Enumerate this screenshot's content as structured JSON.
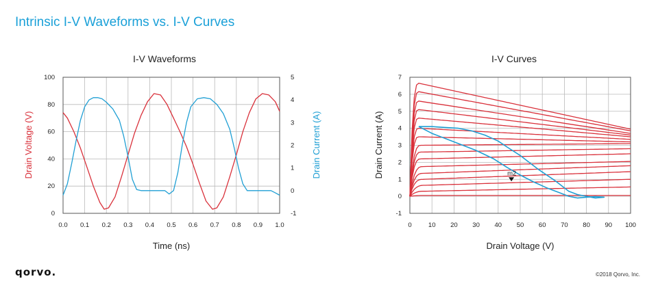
{
  "page": {
    "title": "Intrinsic I-V Waveforms vs. I-V Curves",
    "logo": "qorvo.",
    "copyright": "©2018 Qorvo, Inc."
  },
  "colors": {
    "red": "#d9303a",
    "blue": "#1f9fd4",
    "title_blue": "#1aa0d8",
    "grid": "#b9b9b9"
  },
  "chart_data": [
    {
      "type": "line",
      "title": "I-V Waveforms",
      "xlabel": "Time (ns)",
      "ylabel": "Drain Voltage (V)",
      "y2label": "Drain Current (A)",
      "xlim": [
        0,
        1.0
      ],
      "ylim": [
        0,
        100
      ],
      "y2lim": [
        -1,
        5
      ],
      "xticks": [
        "0.0",
        "0.1",
        "0.2",
        "0.3",
        "0.4",
        "0.5",
        "0.6",
        "0.7",
        "0.8",
        "0.9",
        "1.0"
      ],
      "yticks": [
        "0",
        "20",
        "40",
        "60",
        "80",
        "100"
      ],
      "y2ticks": [
        "-1",
        "0",
        "1",
        "2",
        "3",
        "4",
        "5"
      ],
      "grid": true,
      "series": [
        {
          "axis": "left",
          "color": "#d9303a",
          "x": [
            0,
            0.02,
            0.05,
            0.08,
            0.11,
            0.14,
            0.17,
            0.19,
            0.21,
            0.24,
            0.27,
            0.3,
            0.33,
            0.36,
            0.39,
            0.42,
            0.45,
            0.48,
            0.51,
            0.54,
            0.57,
            0.6,
            0.63,
            0.66,
            0.69,
            0.71,
            0.74,
            0.77,
            0.8,
            0.83,
            0.86,
            0.89,
            0.92,
            0.95,
            0.98,
            1.0
          ],
          "y": [
            74,
            70,
            60,
            48,
            34,
            20,
            8,
            3,
            4,
            12,
            27,
            43,
            59,
            72,
            82,
            88,
            87,
            80,
            70,
            60,
            49,
            36,
            22,
            9,
            3,
            4,
            12,
            27,
            43,
            60,
            74,
            84,
            88,
            87,
            82,
            75
          ]
        },
        {
          "axis": "right",
          "color": "#1f9fd4",
          "x": [
            0,
            0.02,
            0.04,
            0.06,
            0.08,
            0.1,
            0.12,
            0.14,
            0.16,
            0.18,
            0.2,
            0.23,
            0.26,
            0.28,
            0.3,
            0.32,
            0.34,
            0.36,
            0.4,
            0.44,
            0.47,
            0.49,
            0.51,
            0.53,
            0.55,
            0.57,
            0.59,
            0.62,
            0.65,
            0.68,
            0.71,
            0.74,
            0.77,
            0.79,
            0.81,
            0.83,
            0.85,
            0.87,
            0.92,
            0.96,
            0.98,
            1.0
          ],
          "y": [
            -0.2,
            0.3,
            1.2,
            2.2,
            3.1,
            3.7,
            4.0,
            4.1,
            4.1,
            4.05,
            3.9,
            3.6,
            3.1,
            2.4,
            1.5,
            0.5,
            0.05,
            0.0,
            0.0,
            0.0,
            0.0,
            -0.15,
            0.0,
            0.8,
            2.0,
            3.0,
            3.7,
            4.05,
            4.1,
            4.05,
            3.8,
            3.4,
            2.7,
            1.9,
            1.0,
            0.3,
            0.0,
            0.0,
            0.0,
            0.0,
            -0.1,
            -0.2
          ]
        }
      ]
    },
    {
      "type": "line",
      "title": "I-V Curves",
      "xlabel": "Drain Voltage (V)",
      "ylabel": "Drain Current (A)",
      "xlim": [
        0,
        100
      ],
      "ylim": [
        -1,
        7
      ],
      "xticks": [
        "0",
        "10",
        "20",
        "30",
        "40",
        "50",
        "60",
        "70",
        "80",
        "90",
        "100"
      ],
      "yticks": [
        "-1",
        "0",
        "1",
        "2",
        "3",
        "4",
        "5",
        "6",
        "7"
      ],
      "grid": true,
      "family": {
        "color": "#d9303a",
        "knee_x": [
          8,
          7,
          7,
          6,
          6,
          6,
          5,
          5,
          5,
          4,
          4,
          4,
          4,
          4,
          4,
          4
        ],
        "peak_y": [
          0.05,
          0.3,
          0.65,
          1.0,
          1.35,
          1.75,
          2.2,
          2.6,
          3.0,
          3.5,
          4.0,
          4.6,
          5.1,
          5.6,
          6.15,
          6.65
        ],
        "end_y": [
          0.05,
          0.55,
          1.0,
          1.45,
          1.8,
          2.05,
          2.5,
          2.8,
          3.1,
          3.2,
          3.35,
          3.5,
          3.6,
          3.7,
          3.85,
          3.95
        ]
      },
      "load_line": {
        "color": "#1f9fd4",
        "x": [
          4,
          10,
          20,
          30,
          38,
          44,
          50,
          56,
          62,
          68,
          72,
          76,
          80,
          84,
          88,
          84,
          80,
          76,
          72,
          66,
          58,
          50,
          44,
          40,
          34,
          28,
          22,
          16,
          10,
          6,
          4
        ],
        "y": [
          4.1,
          3.7,
          3.2,
          2.7,
          2.2,
          1.7,
          1.25,
          0.85,
          0.5,
          0.2,
          0.0,
          -0.1,
          -0.05,
          -0.02,
          -0.05,
          -0.1,
          0.0,
          0.1,
          0.3,
          0.9,
          1.6,
          2.4,
          2.9,
          3.25,
          3.6,
          3.85,
          4.0,
          4.05,
          4.1,
          4.1,
          4.1
        ]
      },
      "marker": {
        "label": "m2",
        "x": 46,
        "y": 1.0
      }
    }
  ]
}
